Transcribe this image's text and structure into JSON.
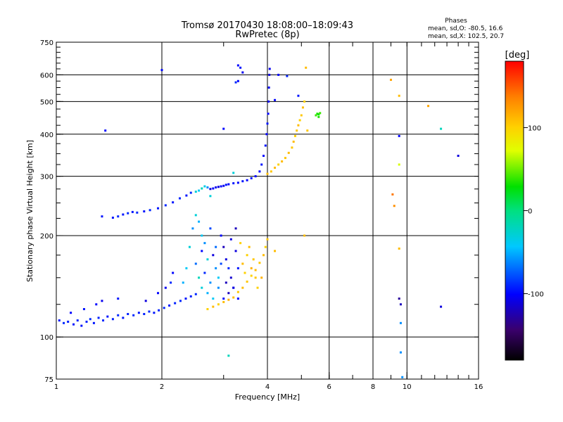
{
  "chart_data": {
    "type": "scatter",
    "title": "Tromsø 20170430 18:08:00–18:09:43",
    "subtitle": "RwPretec (8p)",
    "xlabel": "Frequency [MHz]",
    "ylabel": "Stationary phase Virtual Height [km]",
    "x_scale": "log",
    "y_scale": "log",
    "xlim": [
      1,
      16
    ],
    "ylim": [
      75,
      750
    ],
    "x_ticks": [
      1,
      2,
      4,
      6,
      8,
      10,
      16
    ],
    "x_gridlines": [
      2,
      4,
      6,
      8,
      10
    ],
    "y_ticks": [
      75,
      100,
      200,
      300,
      400,
      500,
      600,
      750
    ],
    "y_gridlines": [
      100,
      200,
      300,
      400,
      500,
      600
    ],
    "grid": true,
    "stats": {
      "title": "Phases",
      "line1": "mean, sd,O: -80.5, 16.6",
      "line2": "mean, sd,X: 102.5, 20.7"
    },
    "colorbar": {
      "label": "[deg]",
      "range": [
        -180,
        180
      ],
      "ticks": [
        100,
        0,
        -100
      ],
      "tick_labels": [
        "100",
        "0",
        "-100"
      ],
      "placement": "right"
    },
    "series": [
      {
        "points": [
          [
            1.02,
            112,
            -95
          ],
          [
            1.05,
            110,
            -90
          ],
          [
            1.08,
            111,
            -92
          ],
          [
            1.12,
            109,
            -95
          ],
          [
            1.15,
            112,
            -90
          ],
          [
            1.18,
            108,
            -95
          ],
          [
            1.22,
            111,
            -92
          ],
          [
            1.25,
            113,
            -88
          ],
          [
            1.28,
            110,
            -95
          ],
          [
            1.32,
            114,
            -92
          ],
          [
            1.36,
            112,
            -90
          ],
          [
            1.4,
            115,
            -95
          ],
          [
            1.45,
            113,
            -92
          ],
          [
            1.5,
            116,
            -90
          ],
          [
            1.55,
            114,
            -95
          ],
          [
            1.6,
            117,
            -92
          ],
          [
            1.66,
            116,
            -90
          ],
          [
            1.72,
            118,
            -95
          ],
          [
            1.78,
            117,
            -92
          ],
          [
            1.84,
            119,
            -90
          ],
          [
            1.9,
            118,
            -95
          ],
          [
            1.96,
            120,
            -92
          ],
          [
            2.03,
            122,
            -90
          ],
          [
            2.1,
            124,
            -95
          ],
          [
            2.18,
            126,
            -92
          ],
          [
            2.26,
            128,
            -90
          ],
          [
            2.34,
            130,
            -95
          ],
          [
            2.42,
            132,
            -92
          ],
          [
            2.5,
            134,
            -90
          ],
          [
            1.1,
            118,
            -100
          ],
          [
            1.2,
            121,
            -95
          ],
          [
            1.3,
            125,
            -100
          ],
          [
            1.35,
            128,
            -105
          ],
          [
            1.5,
            130,
            -95
          ],
          [
            1.8,
            128,
            -110
          ],
          [
            1.95,
            135,
            -100
          ],
          [
            2.05,
            140,
            -105
          ],
          [
            2.12,
            145,
            -90
          ],
          [
            2.15,
            155,
            -100
          ],
          [
            1.35,
            228,
            -95
          ],
          [
            1.38,
            410,
            -100
          ],
          [
            1.45,
            226,
            -95
          ],
          [
            1.5,
            228,
            -90
          ],
          [
            1.55,
            231,
            -95
          ],
          [
            1.6,
            233,
            -90
          ],
          [
            1.65,
            235,
            -95
          ],
          [
            1.7,
            234,
            -90
          ],
          [
            1.78,
            236,
            -95
          ],
          [
            1.85,
            238,
            -90
          ],
          [
            1.95,
            241,
            -95
          ],
          [
            2.05,
            246,
            -90
          ],
          [
            2.15,
            251,
            -95
          ],
          [
            2.25,
            258,
            -90
          ],
          [
            2.35,
            263,
            -95
          ],
          [
            2.42,
            268,
            -90
          ],
          [
            2.5,
            270,
            -30
          ],
          [
            2.55,
            272,
            -40
          ],
          [
            2.6,
            276,
            -20
          ],
          [
            2.65,
            280,
            -35
          ],
          [
            2.7,
            278,
            -60
          ],
          [
            2.75,
            275,
            -110
          ],
          [
            2.8,
            276,
            -100
          ],
          [
            2.85,
            278,
            -105
          ],
          [
            2.9,
            279,
            -110
          ],
          [
            2.95,
            280,
            -100
          ],
          [
            3.0,
            281,
            -105
          ],
          [
            3.05,
            283,
            -95
          ],
          [
            3.1,
            284,
            -100
          ],
          [
            3.2,
            286,
            -95
          ],
          [
            3.3,
            287,
            -100
          ],
          [
            3.4,
            290,
            -95
          ],
          [
            3.5,
            292,
            -100
          ],
          [
            3.6,
            296,
            -95
          ],
          [
            3.7,
            300,
            -100
          ],
          [
            3.8,
            310,
            -100
          ],
          [
            3.85,
            325,
            -95
          ],
          [
            3.9,
            345,
            -100
          ],
          [
            3.95,
            370,
            -95
          ],
          [
            3.98,
            400,
            -100
          ],
          [
            4.0,
            430,
            -95
          ],
          [
            4.02,
            460,
            -100
          ],
          [
            4.03,
            500,
            -105
          ],
          [
            4.04,
            550,
            -100
          ],
          [
            4.05,
            600,
            -110
          ],
          [
            4.06,
            625,
            -105
          ],
          [
            3.3,
            640,
            -100
          ],
          [
            3.35,
            630,
            -95
          ],
          [
            3.4,
            610,
            -105
          ],
          [
            3.25,
            570,
            -90
          ],
          [
            3.3,
            575,
            -100
          ],
          [
            2.45,
            210,
            -60
          ],
          [
            2.5,
            230,
            -30
          ],
          [
            2.55,
            220,
            -50
          ],
          [
            2.6,
            200,
            -40
          ],
          [
            2.6,
            180,
            -100
          ],
          [
            2.65,
            190,
            -60
          ],
          [
            2.7,
            170,
            -30
          ],
          [
            2.75,
            210,
            -80
          ],
          [
            2.8,
            175,
            -110
          ],
          [
            2.85,
            160,
            -60
          ],
          [
            2.9,
            150,
            -40
          ],
          [
            2.95,
            200,
            -100
          ],
          [
            3.0,
            185,
            -120
          ],
          [
            3.05,
            170,
            -110
          ],
          [
            3.1,
            160,
            -90
          ],
          [
            3.15,
            150,
            -115
          ],
          [
            3.2,
            140,
            -100
          ],
          [
            3.25,
            180,
            -110
          ],
          [
            3.3,
            160,
            -95
          ],
          [
            2.55,
            150,
            -20
          ],
          [
            2.6,
            140,
            -30
          ],
          [
            2.7,
            135,
            -50
          ],
          [
            2.8,
            130,
            -40
          ],
          [
            2.9,
            140,
            -60
          ],
          [
            3.0,
            130,
            -100
          ],
          [
            3.1,
            135,
            -120
          ],
          [
            3.2,
            140,
            -110
          ],
          [
            3.3,
            130,
            -100
          ],
          [
            2.5,
            165,
            -70
          ],
          [
            2.65,
            155,
            -90
          ],
          [
            2.75,
            145,
            -60
          ],
          [
            2.85,
            185,
            -70
          ],
          [
            2.95,
            165,
            -80
          ],
          [
            3.05,
            145,
            -120
          ],
          [
            3.15,
            195,
            -110
          ],
          [
            3.25,
            210,
            -120
          ],
          [
            2.4,
            185,
            -30
          ],
          [
            2.35,
            160,
            -40
          ],
          [
            2.3,
            145,
            -50
          ],
          [
            2.7,
            121,
            100
          ],
          [
            2.8,
            123,
            110
          ],
          [
            2.9,
            125,
            100
          ],
          [
            3.0,
            127,
            110
          ],
          [
            3.1,
            129,
            115
          ],
          [
            3.2,
            131,
            110
          ],
          [
            3.3,
            136,
            105
          ],
          [
            3.4,
            140,
            110
          ],
          [
            3.5,
            146,
            105
          ],
          [
            3.6,
            152,
            100
          ],
          [
            3.7,
            158,
            110
          ],
          [
            3.8,
            166,
            105
          ],
          [
            3.9,
            175,
            110
          ],
          [
            3.95,
            185,
            100
          ],
          [
            3.4,
            165,
            110
          ],
          [
            3.5,
            175,
            100
          ],
          [
            3.6,
            160,
            115
          ],
          [
            3.7,
            150,
            105
          ],
          [
            3.45,
            155,
            100
          ],
          [
            3.55,
            185,
            110
          ],
          [
            3.75,
            140,
            100
          ],
          [
            3.85,
            150,
            115
          ],
          [
            3.65,
            170,
            105
          ],
          [
            3.35,
            190,
            100
          ],
          [
            4.0,
            305,
            110
          ],
          [
            4.1,
            310,
            105
          ],
          [
            4.2,
            318,
            110
          ],
          [
            4.3,
            325,
            100
          ],
          [
            4.4,
            332,
            110
          ],
          [
            4.5,
            340,
            105
          ],
          [
            4.6,
            352,
            110
          ],
          [
            4.7,
            365,
            105
          ],
          [
            4.75,
            380,
            110
          ],
          [
            4.8,
            395,
            100
          ],
          [
            4.85,
            410,
            105
          ],
          [
            4.9,
            425,
            110
          ],
          [
            4.95,
            440,
            100
          ],
          [
            5.0,
            455,
            105
          ],
          [
            5.05,
            480,
            110
          ],
          [
            5.1,
            500,
            100
          ],
          [
            5.15,
            630,
            110
          ],
          [
            5.2,
            410,
            105
          ],
          [
            5.1,
            200,
            110
          ],
          [
            5.5,
            455,
            40
          ],
          [
            5.55,
            460,
            35
          ],
          [
            5.6,
            458,
            30
          ],
          [
            5.65,
            462,
            40
          ],
          [
            5.6,
            450,
            35
          ],
          [
            4.55,
            595,
            -90
          ],
          [
            4.3,
            600,
            -100
          ],
          [
            4.9,
            520,
            -95
          ],
          [
            4.2,
            505,
            -100
          ],
          [
            9.0,
            580,
            120
          ],
          [
            9.5,
            520,
            110
          ],
          [
            9.5,
            395,
            -100
          ],
          [
            11.5,
            485,
            120
          ],
          [
            12.5,
            415,
            -20
          ],
          [
            14.0,
            345,
            -110
          ],
          [
            9.2,
            245,
            130
          ],
          [
            9.1,
            265,
            140
          ],
          [
            9.5,
            325,
            70
          ],
          [
            9.6,
            125,
            -120
          ],
          [
            9.5,
            130,
            -130
          ],
          [
            12.5,
            123,
            -110
          ],
          [
            9.6,
            110,
            -60
          ],
          [
            9.6,
            90,
            -60
          ],
          [
            9.5,
            183,
            110
          ],
          [
            9.7,
            76,
            -60
          ],
          [
            3.1,
            88,
            -20
          ],
          [
            2.0,
            620,
            -100
          ],
          [
            3.0,
            415,
            -100
          ],
          [
            2.75,
            262,
            -30
          ],
          [
            3.2,
            307,
            -30
          ],
          [
            4.2,
            180,
            110
          ],
          [
            4.0,
            195,
            105
          ]
        ]
      }
    ]
  }
}
